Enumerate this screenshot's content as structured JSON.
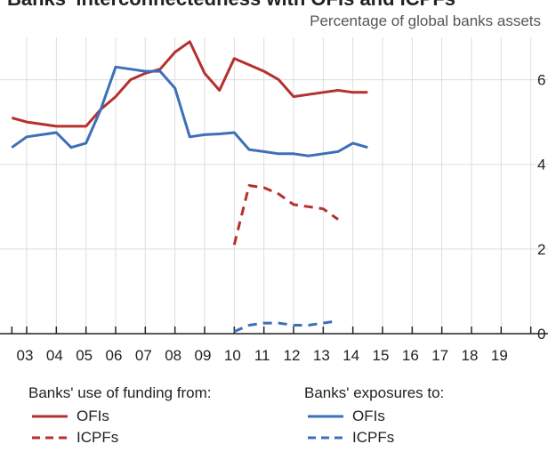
{
  "title": "Banks' interconnectedness with OFIs and ICPFs",
  "unit_label": "Percentage of global banks assets",
  "legend": {
    "left_title": "Banks' use of funding from:",
    "right_title": "Banks' exposures to:",
    "ofis": "OFIs",
    "icpfs": "ICPFs"
  },
  "colors": {
    "red": "#b5302e",
    "blue": "#3d6fb8",
    "grid": "#dddddd"
  },
  "chart_data": {
    "type": "line",
    "x_tick_labels": [
      "03",
      "04",
      "05",
      "06",
      "07",
      "08",
      "09",
      "10",
      "11",
      "12",
      "13",
      "14",
      "15",
      "16",
      "17",
      "18",
      "19"
    ],
    "ylim": [
      0,
      7
    ],
    "y_ticks": [
      0,
      2,
      4,
      6
    ],
    "y_axis_side": "right",
    "grid": true,
    "x_positions": [
      2002.5,
      2003,
      2003.5,
      2004,
      2004.5,
      2005,
      2005.5,
      2006,
      2006.5,
      2007,
      2007.5,
      2008,
      2008.5,
      2009,
      2009.5,
      2010,
      2010.5,
      2011,
      2011.5,
      2012,
      2012.5,
      2013,
      2013.5,
      2014,
      2014.5,
      2015,
      2015.5,
      2016,
      2016.5,
      2017,
      2017.5,
      2018,
      2018.5,
      2019,
      2019.5
    ],
    "series": [
      {
        "group": "funding",
        "name": "OFIs",
        "color": "red",
        "dash": false,
        "values": [
          5.1,
          5.0,
          4.95,
          4.9,
          4.9,
          4.9,
          5.3,
          5.6,
          6.0,
          6.15,
          6.25,
          6.65,
          6.9,
          6.15,
          5.75,
          6.5,
          6.35,
          6.2,
          6.0,
          5.6,
          5.65,
          5.7,
          5.75,
          5.7,
          5.7,
          null,
          null,
          null,
          null,
          null,
          null,
          null,
          null,
          null,
          null
        ]
      },
      {
        "group": "exposures",
        "name": "OFIs",
        "color": "blue",
        "dash": false,
        "values": [
          4.4,
          4.65,
          4.7,
          4.75,
          4.4,
          4.5,
          5.3,
          6.3,
          6.25,
          6.2,
          6.2,
          5.8,
          4.65,
          4.7,
          4.72,
          4.75,
          4.35,
          4.3,
          4.25,
          4.25,
          4.2,
          4.25,
          4.3,
          4.5,
          4.4,
          null,
          null,
          null,
          null,
          null,
          null,
          null,
          null,
          null,
          null
        ]
      },
      {
        "group": "funding",
        "name": "ICPFs",
        "color": "red",
        "dash": true,
        "values": [
          null,
          null,
          null,
          null,
          null,
          null,
          null,
          null,
          null,
          null,
          null,
          null,
          null,
          null,
          null,
          2.1,
          3.5,
          3.45,
          3.3,
          3.05,
          3.0,
          2.95,
          2.7,
          null,
          null,
          null,
          null,
          null,
          null,
          null,
          null,
          null,
          null,
          null,
          null
        ]
      },
      {
        "group": "exposures",
        "name": "ICPFs",
        "color": "blue",
        "dash": true,
        "values": [
          null,
          null,
          null,
          null,
          null,
          null,
          null,
          null,
          null,
          null,
          null,
          null,
          null,
          null,
          null,
          0.05,
          0.2,
          0.25,
          0.25,
          0.2,
          0.2,
          0.25,
          0.3,
          null,
          null,
          null,
          null,
          null,
          null,
          null,
          null,
          null,
          null,
          null,
          null
        ]
      }
    ]
  }
}
